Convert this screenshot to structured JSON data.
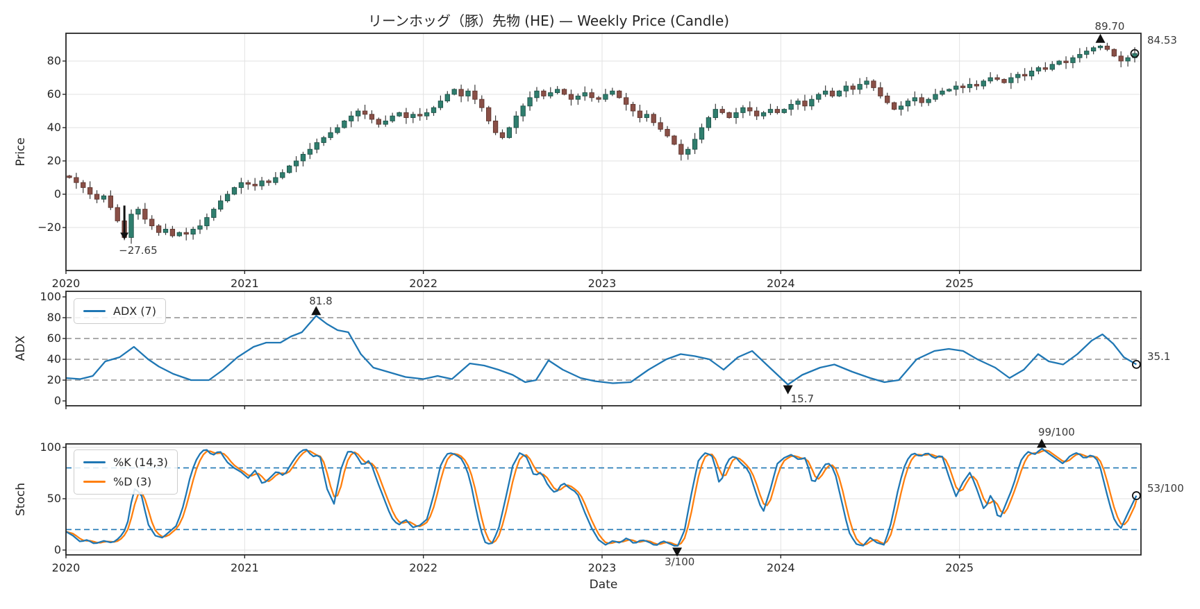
{
  "title": "リーンホッグ（豚）先物 (HE) — Weekly Price (Candle)",
  "axes": {
    "price_label": "Price",
    "adx_label": "ADX",
    "stoch_label": "Stoch",
    "date_label": "Date"
  },
  "legend": {
    "adx": "ADX (7)",
    "k": "%K (14,3)",
    "d": "%D (3)"
  },
  "annotations": {
    "price_high": {
      "label": "89.70",
      "x": 2025.79,
      "v": 89.7
    },
    "price_last": {
      "label": "84.53",
      "v": 84.53
    },
    "price_low": {
      "label": "−27.65",
      "x": 2020.327,
      "v": -27.65
    },
    "adx_peak": {
      "label": "81.8",
      "x": 2021.4,
      "v": 81.8
    },
    "adx_trough": {
      "label": "15.7",
      "x": 2024.04,
      "v": 15.7
    },
    "adx_last": {
      "label": "35.1",
      "v": 35.1
    },
    "stoch_peak": {
      "label": "99/100",
      "x": 2025.46,
      "v": 99
    },
    "stoch_trough": {
      "label": "3/100",
      "x": 2023.42,
      "v": 3
    },
    "stoch_last": {
      "label": "53/100",
      "v": 53
    }
  },
  "colors": {
    "up": "#2f7e6e",
    "up_edge": "#1e5248",
    "down": "#8a5047",
    "down_edge": "#5e352f",
    "wick": "#3b3b3b",
    "adx_line": "#1f77b4",
    "k_line": "#1f77b4",
    "d_line": "#ff7f0e",
    "guide_gray": "#9f9f9f",
    "guide_blue": "#1f77b4",
    "grid": "#e2e2e2",
    "spine": "#262626",
    "marker": "#111111"
  },
  "chart_data": [
    {
      "type": "candlestick",
      "name": "Weekly Price (Candle)",
      "ylabel": "Price",
      "ylim": [
        -46,
        97
      ],
      "x_start": 2020.0,
      "x_step": 0.0384615,
      "first_open": 11,
      "extreme_high": 89.7,
      "extreme_low": -27.65,
      "closes": [
        10,
        7,
        4,
        0,
        -3,
        -1,
        -8,
        -16,
        -26,
        -12,
        -9,
        -15,
        -19,
        -23,
        -21,
        -25,
        -23,
        -24,
        -21,
        -19,
        -14,
        -9,
        -4,
        0,
        4,
        7,
        6,
        5,
        8,
        7,
        10,
        13,
        17,
        20,
        24,
        27,
        31,
        34,
        37,
        40,
        44,
        47,
        50,
        48,
        45,
        42,
        44,
        47,
        49,
        46,
        48,
        47,
        49,
        52,
        56,
        60,
        63,
        59,
        62,
        57,
        52,
        44,
        37,
        34,
        40,
        47,
        53,
        58,
        62,
        59,
        61,
        63,
        60,
        57,
        59,
        61,
        58,
        57,
        60,
        62,
        58,
        54,
        50,
        46,
        48,
        43,
        39,
        35,
        30,
        24,
        27,
        33,
        40,
        46,
        51,
        49,
        46,
        49,
        52,
        50,
        47,
        49,
        51,
        49,
        51,
        54,
        56,
        53,
        57,
        60,
        62,
        59,
        62,
        65,
        63,
        66,
        68,
        64,
        59,
        55,
        51,
        53,
        56,
        58,
        55,
        57,
        60,
        62,
        63,
        65,
        64,
        66,
        65,
        68,
        70,
        69,
        67,
        70,
        72,
        71,
        74,
        76,
        75,
        78,
        80,
        79,
        82,
        84,
        86,
        88,
        89,
        87,
        83,
        80,
        82,
        84.53
      ],
      "y_ticks": [
        {
          "label": "80",
          "value": 80
        },
        {
          "label": "60",
          "value": 60
        },
        {
          "label": "40",
          "value": 40
        },
        {
          "label": "20",
          "value": 20
        },
        {
          "label": "0",
          "value": 0
        },
        {
          "label": "−20",
          "value": -20
        }
      ],
      "x_ticks": [
        {
          "label": "2020",
          "value": 2020
        },
        {
          "label": "2021",
          "value": 2021
        },
        {
          "label": "2022",
          "value": 2022
        },
        {
          "label": "2023",
          "value": 2023
        },
        {
          "label": "2024",
          "value": 2024
        },
        {
          "label": "2025",
          "value": 2025
        }
      ]
    },
    {
      "type": "line",
      "name": "ADX (7)",
      "ylabel": "ADX",
      "ylim": [
        -5,
        105
      ],
      "guides": [
        20,
        40,
        60,
        80
      ],
      "y_ticks": [
        {
          "label": "100",
          "value": 100
        },
        {
          "label": "80",
          "value": 80
        },
        {
          "label": "60",
          "value": 60
        },
        {
          "label": "40",
          "value": 40
        },
        {
          "label": "20",
          "value": 20
        },
        {
          "label": "0",
          "value": 0
        }
      ],
      "points": [
        [
          2020.0,
          22
        ],
        [
          2020.08,
          21
        ],
        [
          2020.15,
          24
        ],
        [
          2020.22,
          38
        ],
        [
          2020.3,
          42
        ],
        [
          2020.38,
          52
        ],
        [
          2020.46,
          40
        ],
        [
          2020.52,
          33
        ],
        [
          2020.6,
          26
        ],
        [
          2020.7,
          20
        ],
        [
          2020.8,
          20
        ],
        [
          2020.88,
          30
        ],
        [
          2020.96,
          42
        ],
        [
          2021.05,
          52
        ],
        [
          2021.12,
          56
        ],
        [
          2021.2,
          56
        ],
        [
          2021.26,
          62
        ],
        [
          2021.32,
          66
        ],
        [
          2021.4,
          81.8
        ],
        [
          2021.46,
          74
        ],
        [
          2021.52,
          68
        ],
        [
          2021.58,
          66
        ],
        [
          2021.65,
          45
        ],
        [
          2021.72,
          32
        ],
        [
          2021.8,
          28
        ],
        [
          2021.9,
          23
        ],
        [
          2022.0,
          21
        ],
        [
          2022.08,
          24
        ],
        [
          2022.16,
          21
        ],
        [
          2022.26,
          36
        ],
        [
          2022.34,
          34
        ],
        [
          2022.42,
          30
        ],
        [
          2022.5,
          25
        ],
        [
          2022.57,
          18
        ],
        [
          2022.63,
          20
        ],
        [
          2022.7,
          39
        ],
        [
          2022.78,
          30
        ],
        [
          2022.88,
          22
        ],
        [
          2022.96,
          19
        ],
        [
          2023.06,
          17
        ],
        [
          2023.16,
          18
        ],
        [
          2023.26,
          30
        ],
        [
          2023.36,
          40
        ],
        [
          2023.44,
          45
        ],
        [
          2023.52,
          43
        ],
        [
          2023.6,
          40
        ],
        [
          2023.68,
          30
        ],
        [
          2023.76,
          42
        ],
        [
          2023.84,
          48
        ],
        [
          2023.92,
          35
        ],
        [
          2024.04,
          15.7
        ],
        [
          2024.12,
          25
        ],
        [
          2024.22,
          32
        ],
        [
          2024.3,
          35
        ],
        [
          2024.4,
          28
        ],
        [
          2024.5,
          22
        ],
        [
          2024.58,
          18
        ],
        [
          2024.66,
          20
        ],
        [
          2024.76,
          40
        ],
        [
          2024.86,
          48
        ],
        [
          2024.94,
          50
        ],
        [
          2025.02,
          48
        ],
        [
          2025.1,
          40
        ],
        [
          2025.2,
          32
        ],
        [
          2025.28,
          22
        ],
        [
          2025.36,
          30
        ],
        [
          2025.44,
          45
        ],
        [
          2025.5,
          38
        ],
        [
          2025.58,
          35
        ],
        [
          2025.66,
          45
        ],
        [
          2025.74,
          58
        ],
        [
          2025.8,
          64
        ],
        [
          2025.86,
          55
        ],
        [
          2025.92,
          42
        ],
        [
          2025.99,
          35.1
        ]
      ]
    },
    {
      "type": "line",
      "name": "Stochastic",
      "ylabel": "Stoch",
      "ylim": [
        -5,
        103
      ],
      "guides": [
        20,
        80
      ],
      "d_is_sma_of_k": 3,
      "y_ticks": [
        {
          "label": "100",
          "value": 100
        },
        {
          "label": "50",
          "value": 50
        },
        {
          "label": "0",
          "value": 0
        }
      ],
      "k_points": [
        [
          2020.0,
          18
        ],
        [
          2020.04,
          14
        ],
        [
          2020.08,
          8
        ],
        [
          2020.12,
          10
        ],
        [
          2020.16,
          6
        ],
        [
          2020.21,
          9
        ],
        [
          2020.26,
          7
        ],
        [
          2020.3,
          12
        ],
        [
          2020.34,
          22
        ],
        [
          2020.38,
          60
        ],
        [
          2020.42,
          55
        ],
        [
          2020.46,
          25
        ],
        [
          2020.5,
          14
        ],
        [
          2020.54,
          12
        ],
        [
          2020.58,
          18
        ],
        [
          2020.62,
          24
        ],
        [
          2020.66,
          45
        ],
        [
          2020.7,
          75
        ],
        [
          2020.74,
          92
        ],
        [
          2020.78,
          99
        ],
        [
          2020.82,
          92
        ],
        [
          2020.86,
          97
        ],
        [
          2020.9,
          86
        ],
        [
          2020.94,
          80
        ],
        [
          2020.98,
          76
        ],
        [
          2021.02,
          70
        ],
        [
          2021.06,
          78
        ],
        [
          2021.1,
          64
        ],
        [
          2021.14,
          70
        ],
        [
          2021.18,
          77
        ],
        [
          2021.22,
          72
        ],
        [
          2021.26,
          84
        ],
        [
          2021.3,
          94
        ],
        [
          2021.34,
          99
        ],
        [
          2021.38,
          91
        ],
        [
          2021.42,
          93
        ],
        [
          2021.46,
          60
        ],
        [
          2021.5,
          45
        ],
        [
          2021.54,
          80
        ],
        [
          2021.58,
          97
        ],
        [
          2021.62,
          94
        ],
        [
          2021.66,
          82
        ],
        [
          2021.7,
          88
        ],
        [
          2021.74,
          68
        ],
        [
          2021.78,
          50
        ],
        [
          2021.82,
          32
        ],
        [
          2021.86,
          24
        ],
        [
          2021.9,
          30
        ],
        [
          2021.94,
          22
        ],
        [
          2021.98,
          24
        ],
        [
          2022.02,
          30
        ],
        [
          2022.06,
          55
        ],
        [
          2022.1,
          85
        ],
        [
          2022.14,
          95
        ],
        [
          2022.18,
          93
        ],
        [
          2022.22,
          88
        ],
        [
          2022.26,
          70
        ],
        [
          2022.3,
          35
        ],
        [
          2022.34,
          8
        ],
        [
          2022.38,
          5
        ],
        [
          2022.42,
          20
        ],
        [
          2022.46,
          50
        ],
        [
          2022.5,
          82
        ],
        [
          2022.54,
          95
        ],
        [
          2022.58,
          90
        ],
        [
          2022.62,
          72
        ],
        [
          2022.66,
          76
        ],
        [
          2022.7,
          62
        ],
        [
          2022.74,
          55
        ],
        [
          2022.78,
          66
        ],
        [
          2022.82,
          60
        ],
        [
          2022.86,
          56
        ],
        [
          2022.9,
          38
        ],
        [
          2022.94,
          22
        ],
        [
          2022.98,
          10
        ],
        [
          2023.02,
          5
        ],
        [
          2023.06,
          9
        ],
        [
          2023.1,
          7
        ],
        [
          2023.14,
          12
        ],
        [
          2023.18,
          6
        ],
        [
          2023.22,
          10
        ],
        [
          2023.26,
          8
        ],
        [
          2023.3,
          4
        ],
        [
          2023.34,
          9
        ],
        [
          2023.38,
          6
        ],
        [
          2023.42,
          3
        ],
        [
          2023.46,
          18
        ],
        [
          2023.5,
          55
        ],
        [
          2023.54,
          88
        ],
        [
          2023.58,
          95
        ],
        [
          2023.62,
          91
        ],
        [
          2023.66,
          62
        ],
        [
          2023.7,
          87
        ],
        [
          2023.74,
          92
        ],
        [
          2023.78,
          84
        ],
        [
          2023.82,
          78
        ],
        [
          2023.86,
          56
        ],
        [
          2023.9,
          36
        ],
        [
          2023.94,
          58
        ],
        [
          2023.98,
          84
        ],
        [
          2024.02,
          90
        ],
        [
          2024.06,
          93
        ],
        [
          2024.1,
          88
        ],
        [
          2024.14,
          90
        ],
        [
          2024.18,
          63
        ],
        [
          2024.22,
          76
        ],
        [
          2024.26,
          86
        ],
        [
          2024.3,
          78
        ],
        [
          2024.34,
          48
        ],
        [
          2024.38,
          18
        ],
        [
          2024.42,
          6
        ],
        [
          2024.46,
          4
        ],
        [
          2024.5,
          12
        ],
        [
          2024.54,
          7
        ],
        [
          2024.58,
          5
        ],
        [
          2024.62,
          28
        ],
        [
          2024.66,
          62
        ],
        [
          2024.7,
          86
        ],
        [
          2024.74,
          95
        ],
        [
          2024.78,
          91
        ],
        [
          2024.82,
          95
        ],
        [
          2024.86,
          89
        ],
        [
          2024.9,
          93
        ],
        [
          2024.94,
          72
        ],
        [
          2024.98,
          52
        ],
        [
          2025.02,
          66
        ],
        [
          2025.06,
          76
        ],
        [
          2025.1,
          58
        ],
        [
          2025.14,
          38
        ],
        [
          2025.18,
          56
        ],
        [
          2025.22,
          28
        ],
        [
          2025.26,
          45
        ],
        [
          2025.3,
          62
        ],
        [
          2025.34,
          86
        ],
        [
          2025.38,
          96
        ],
        [
          2025.42,
          93
        ],
        [
          2025.46,
          99
        ],
        [
          2025.5,
          94
        ],
        [
          2025.54,
          89
        ],
        [
          2025.58,
          84
        ],
        [
          2025.62,
          92
        ],
        [
          2025.66,
          95
        ],
        [
          2025.7,
          89
        ],
        [
          2025.74,
          93
        ],
        [
          2025.78,
          86
        ],
        [
          2025.82,
          58
        ],
        [
          2025.86,
          32
        ],
        [
          2025.9,
          20
        ],
        [
          2025.94,
          35
        ],
        [
          2025.99,
          53
        ]
      ]
    }
  ]
}
